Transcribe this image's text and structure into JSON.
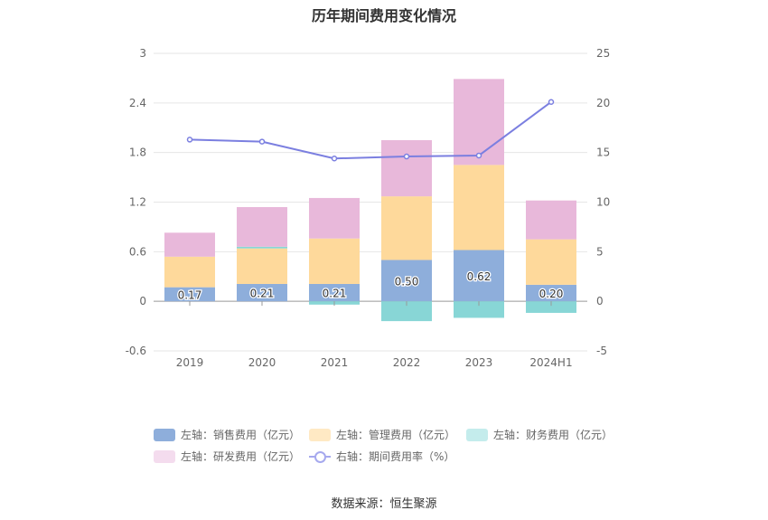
{
  "chart_data": {
    "type": "bar",
    "title": "历年期间费用变化情况",
    "categories": [
      "2019",
      "2020",
      "2021",
      "2022",
      "2023",
      "2024H1"
    ],
    "left_axis": {
      "ylim": [
        -0.6,
        3
      ],
      "ticks": [
        "3",
        "2.4",
        "1.8",
        "1.2",
        "0.6",
        "0",
        "-0.6"
      ]
    },
    "right_axis": {
      "ylim": [
        -5,
        25
      ],
      "ticks": [
        "25",
        "20",
        "15",
        "10",
        "5",
        "0",
        "-5"
      ]
    },
    "stacked": true,
    "series": [
      {
        "name": "左轴：销售费用（亿元）",
        "type": "bar",
        "axis": "left",
        "color": "#8eaedb",
        "values": [
          0.17,
          0.21,
          0.21,
          0.5,
          0.62,
          0.2
        ],
        "labels": [
          "0.17",
          "0.21",
          "0.21",
          "0.50",
          "0.62",
          "0.20"
        ]
      },
      {
        "name": "左轴：管理费用（亿元）",
        "type": "bar",
        "axis": "left",
        "color": "#fed99b",
        "values": [
          0.37,
          0.43,
          0.55,
          0.77,
          1.03,
          0.55
        ]
      },
      {
        "name": "左轴：财务费用（亿元）",
        "type": "bar",
        "axis": "left",
        "color": "#88d6d6",
        "values": [
          0.0,
          0.02,
          -0.04,
          -0.24,
          -0.2,
          -0.14
        ]
      },
      {
        "name": "左轴：研发费用（亿元）",
        "type": "bar",
        "axis": "left",
        "color": "#e8b8da",
        "values": [
          0.29,
          0.48,
          0.49,
          0.68,
          1.04,
          0.47
        ]
      },
      {
        "name": "右轴：期间费用率（%）",
        "type": "line",
        "axis": "right",
        "color": "#7b7fe0",
        "values": [
          16.3,
          16.1,
          14.4,
          14.6,
          14.7,
          20.1
        ]
      }
    ],
    "grid": true,
    "legend_position": "bottom"
  },
  "source": "数据来源：恒生聚源"
}
